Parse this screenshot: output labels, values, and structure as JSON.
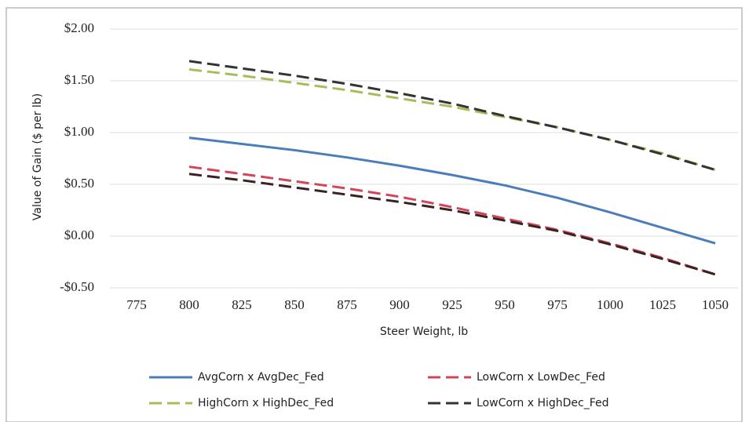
{
  "chart_data": {
    "type": "line",
    "x_label": "Steer Weight, lb",
    "y_label": "Value of Gain ($ per lb)",
    "x": [
      800,
      825,
      850,
      875,
      900,
      925,
      950,
      975,
      1000,
      1025,
      1050
    ],
    "xlim": [
      775,
      1050
    ],
    "xticks": [
      775,
      800,
      825,
      850,
      875,
      900,
      925,
      950,
      975,
      1000,
      1025,
      1050
    ],
    "ylim": [
      -0.5,
      2.0
    ],
    "yticks": [
      {
        "value": -0.5,
        "label": "-$0.50"
      },
      {
        "value": 0,
        "label": "$0.00"
      },
      {
        "value": 0.5,
        "label": "$0.50"
      },
      {
        "value": 1.0,
        "label": "$1.00"
      },
      {
        "value": 1.5,
        "label": "$1.50"
      },
      {
        "value": 2.0,
        "label": "$2.00"
      }
    ],
    "grid": true,
    "series": [
      {
        "name": "AvgCorn x AvgDec_Fed",
        "color": "#4a7ebb",
        "dashed": false,
        "values": [
          0.95,
          0.89,
          0.83,
          0.76,
          0.68,
          0.59,
          0.49,
          0.37,
          0.23,
          0.08,
          -0.07
        ]
      },
      {
        "name": "LowCorn x LowDec_Fed",
        "color": "#d2455a",
        "dashed": true,
        "values": [
          0.67,
          0.6,
          0.53,
          0.46,
          0.38,
          0.28,
          0.17,
          0.06,
          -0.07,
          -0.21,
          -0.37
        ]
      },
      {
        "name": "HighCorn x HighDec_Fed",
        "color": "#a5bd5a",
        "dashed": true,
        "values": [
          1.61,
          1.55,
          1.48,
          1.41,
          1.33,
          1.25,
          1.15,
          1.05,
          0.93,
          0.8,
          0.64
        ]
      },
      {
        "name": "LowCorn x HighDec_Fed",
        "color": "#333333",
        "dashed": true,
        "values": [
          1.69,
          1.62,
          1.55,
          1.47,
          1.38,
          1.28,
          1.16,
          1.05,
          0.93,
          0.79,
          0.64
        ]
      },
      {
        "color": "#3a2222",
        "dashed": true,
        "values": [
          0.6,
          0.54,
          0.47,
          0.4,
          0.33,
          0.25,
          0.15,
          0.05,
          -0.08,
          -0.22,
          -0.37
        ]
      }
    ]
  }
}
